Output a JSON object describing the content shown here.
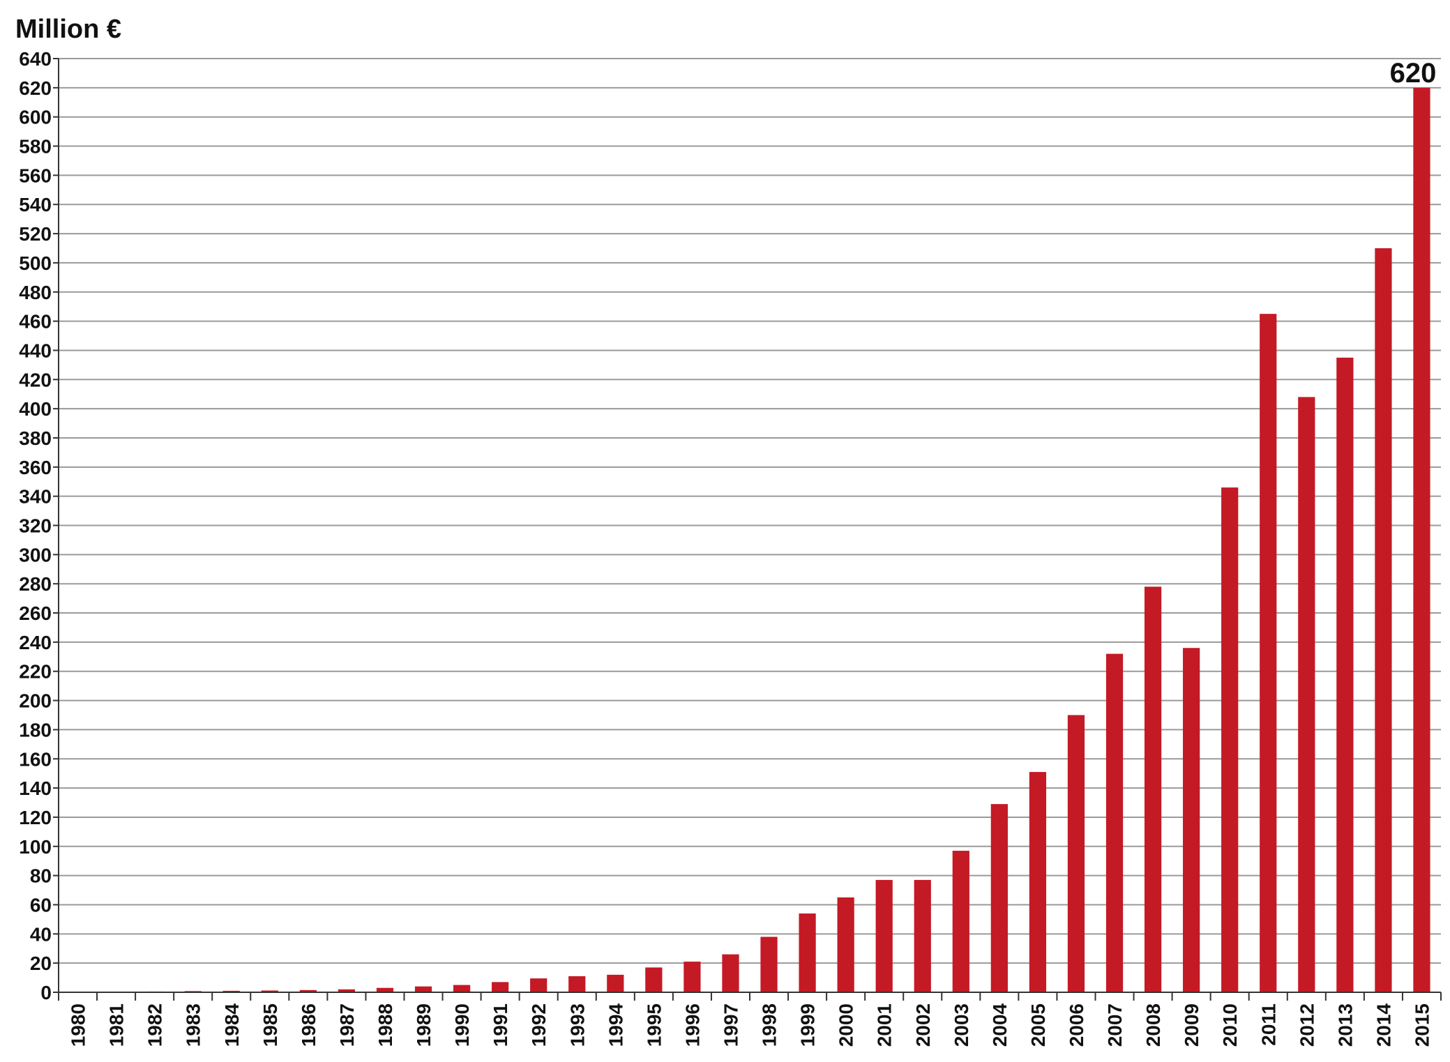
{
  "chart_data": {
    "type": "bar",
    "ylabel": "Million €",
    "ylim": [
      0,
      640
    ],
    "yticks": [
      0,
      20,
      40,
      60,
      80,
      100,
      120,
      140,
      160,
      180,
      200,
      220,
      240,
      260,
      280,
      300,
      320,
      340,
      360,
      380,
      400,
      420,
      440,
      460,
      480,
      500,
      520,
      540,
      560,
      580,
      600,
      620,
      640
    ],
    "categories": [
      "1980",
      "1981",
      "1982",
      "1983",
      "1984",
      "1985",
      "1986",
      "1987",
      "1988",
      "1989",
      "1990",
      "1991",
      "1992",
      "1993",
      "1994",
      "1995",
      "1996",
      "1997",
      "1998",
      "1999",
      "2000",
      "2001",
      "2002",
      "2003",
      "2004",
      "2005",
      "2006",
      "2007",
      "2008",
      "2009",
      "2010",
      "2011",
      "2012",
      "2013",
      "2014",
      "2015"
    ],
    "values": [
      0,
      0.3,
      0.5,
      0.8,
      1,
      1.2,
      1.5,
      2,
      3,
      4,
      5,
      7,
      9.5,
      11,
      12,
      17,
      21,
      26,
      38,
      54,
      65,
      77,
      77,
      97,
      129,
      151,
      190,
      232,
      278,
      236,
      346,
      465,
      408,
      435,
      510,
      620
    ],
    "annotations": [
      {
        "category": "2015",
        "text": "620"
      }
    ],
    "bar_color": "#c41a25",
    "grid": true,
    "legend": "none"
  }
}
